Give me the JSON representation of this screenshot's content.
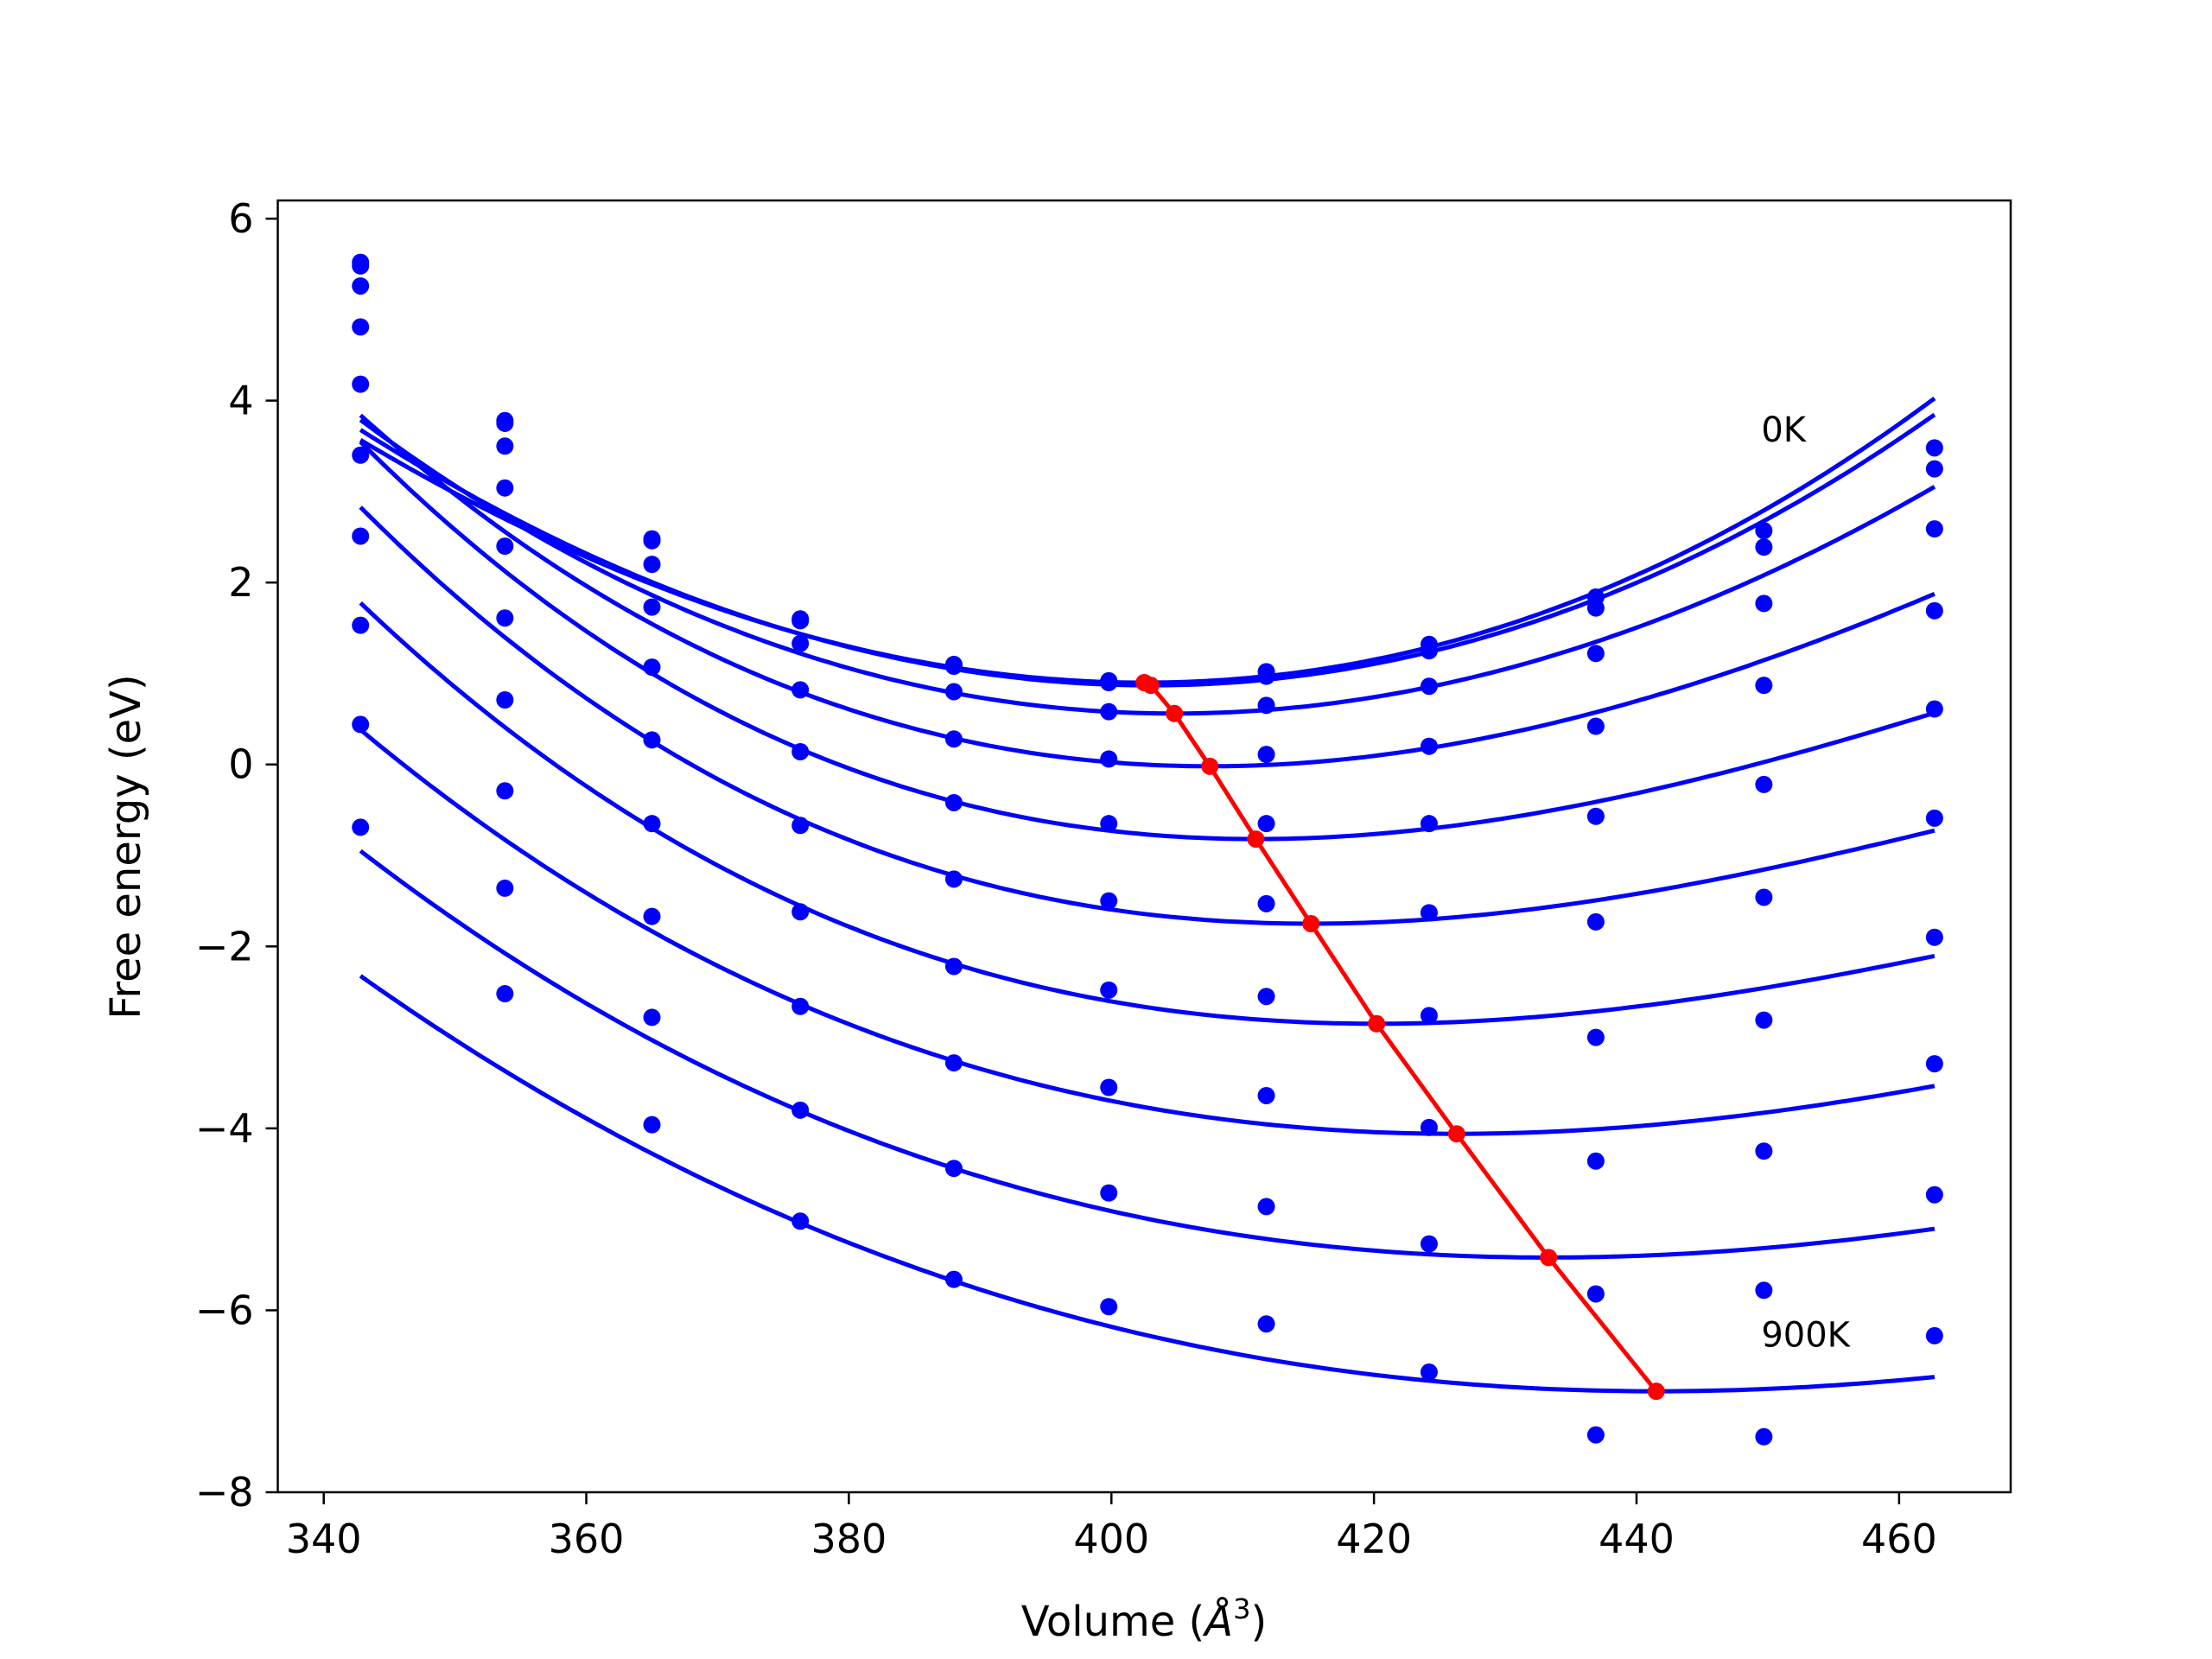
{
  "chart_data": {
    "type": "line",
    "title": "",
    "xlabel": "Volume (Å³)",
    "xlabel_main": "Volume (",
    "xlabel_unit": "Å",
    "xlabel_exp": "3",
    "xlabel_close": ")",
    "ylabel": "Free energy (eV)",
    "xlim": [
      336.5,
      468.5
    ],
    "ylim": [
      -8.0,
      6.2
    ],
    "xticks": [
      340,
      360,
      380,
      400,
      420,
      440,
      460
    ],
    "yticks": [
      -8,
      -6,
      -4,
      -2,
      0,
      2,
      4,
      6
    ],
    "xtick_labels": [
      "340",
      "360",
      "380",
      "400",
      "420",
      "440",
      "460"
    ],
    "ytick_labels": [
      "−8",
      "−6",
      "−4",
      "−2",
      "0",
      "2",
      "4",
      "6"
    ],
    "grid": false,
    "legend": "none",
    "colors": {
      "curves": "#0000ff",
      "minima": "#ff0000",
      "axes": "#000000"
    },
    "annotations": [
      {
        "text": "0K",
        "x": 449.5,
        "y": 3.55
      },
      {
        "text": "900K",
        "x": 449.5,
        "y": -6.4
      }
    ],
    "volumes": [
      342.8,
      353.8,
      365.0,
      376.3,
      388.0,
      399.8,
      411.8,
      424.2,
      436.9,
      449.7,
      462.7
    ],
    "series": [
      {
        "points": [
          5.52,
          3.78,
          2.48,
          1.6,
          1.1,
          0.92,
          1.02,
          1.32,
          1.84,
          2.57,
          3.48
        ],
        "fit": {
          "v0": 402.5,
          "e0": 0.9,
          "a": 0.000805,
          "b": 9.5e-07
        }
      },
      {
        "points": [
          5.48,
          3.75,
          2.46,
          1.58,
          1.08,
          0.9,
          0.97,
          1.25,
          1.72,
          2.39,
          3.25
        ],
        "fit": {
          "v0": 403.0,
          "e0": 0.87,
          "a": 0.000805,
          "b": 5e-07
        }
      },
      {
        "points": [
          5.26,
          3.5,
          2.2,
          1.33,
          0.8,
          0.58,
          0.65,
          0.86,
          1.22,
          1.77,
          2.59
        ],
        "fit": {
          "v0": 404.8,
          "e0": 0.56,
          "a": 0.00079,
          "b": -8e-07
        }
      },
      {
        "points": [
          4.81,
          3.04,
          1.73,
          0.82,
          0.28,
          0.06,
          0.11,
          0.2,
          0.42,
          0.87,
          1.69
        ],
        "fit": {
          "v0": 407.5,
          "e0": -0.02,
          "a": 0.00076,
          "b": -2.5e-06
        }
      },
      {
        "points": [
          4.18,
          2.4,
          1.07,
          0.14,
          -0.42,
          -0.65,
          -0.65,
          -0.65,
          -0.57,
          -0.22,
          0.61
        ],
        "fit": {
          "v0": 411.0,
          "e0": -0.82,
          "a": 0.0007,
          "b": -3.5e-06
        }
      },
      {
        "points": [
          3.4,
          1.61,
          0.27,
          -0.67,
          -1.26,
          -1.5,
          -1.53,
          -1.63,
          -1.73,
          -1.46,
          -0.59
        ],
        "fit": {
          "v0": 415.2,
          "e0": -1.75,
          "a": 0.00062,
          "b": -3.5e-06
        }
      },
      {
        "points": [
          2.51,
          0.71,
          -0.65,
          -1.62,
          -2.22,
          -2.48,
          -2.55,
          -2.76,
          -3.0,
          -2.81,
          -1.9
        ],
        "fit": {
          "v0": 420.2,
          "e0": -2.85,
          "a": 0.00054,
          "b": -3e-06
        }
      },
      {
        "points": [
          1.53,
          -0.29,
          -1.67,
          -2.66,
          -3.28,
          -3.55,
          -3.64,
          -3.99,
          -4.36,
          -4.25,
          -3.29
        ],
        "fit": {
          "v0": 426.3,
          "e0": -4.06,
          "a": 0.00047,
          "b": -2e-06
        }
      },
      {
        "points": [
          0.44,
          -1.36,
          -2.78,
          -3.8,
          -4.44,
          -4.71,
          -4.86,
          -5.27,
          -5.82,
          -5.78,
          -4.73
        ],
        "fit": {
          "v0": 433.3,
          "e0": -5.42,
          "a": 0.00041,
          "b": -1.5e-06
        }
      },
      {
        "points": [
          -0.69,
          -2.52,
          -3.96,
          -5.02,
          -5.66,
          -5.96,
          -6.15,
          -6.68,
          -7.37,
          -7.39,
          -6.28
        ],
        "fit": {
          "v0": 441.5,
          "e0": -6.89,
          "a": 0.00037,
          "b": -1e-06
        }
      }
    ],
    "minima_line": {
      "x": [
        402.5,
        403.0,
        404.8,
        407.5,
        411.0,
        415.2,
        420.2,
        426.3,
        433.3,
        441.5
      ],
      "y": [
        0.9,
        0.87,
        0.56,
        -0.02,
        -0.82,
        -1.75,
        -2.85,
        -4.06,
        -5.42,
        -6.89
      ]
    }
  }
}
